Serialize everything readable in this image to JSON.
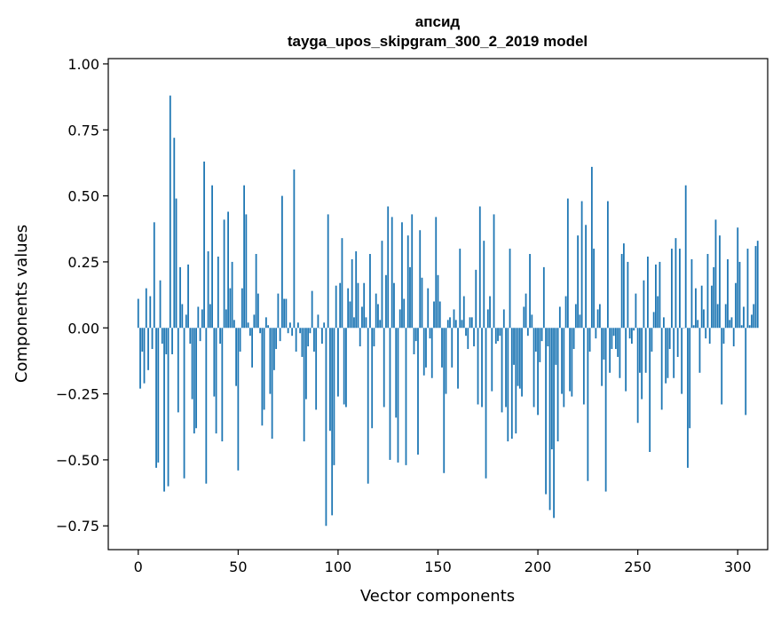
{
  "chart_data": {
    "type": "bar",
    "title": "апсид",
    "subtitle": "tayga_upos_skipgram_300_2_2019 model",
    "xlabel": "Vector components",
    "ylabel": "Components values",
    "xlim": [
      -15,
      315
    ],
    "ylim": [
      -0.84,
      1.02
    ],
    "x_ticks": [
      0,
      50,
      100,
      150,
      200,
      250,
      300
    ],
    "x_tick_labels": [
      "0",
      "50",
      "100",
      "150",
      "200",
      "250",
      "300"
    ],
    "y_ticks": [
      1.0,
      0.75,
      0.5,
      0.25,
      0.0,
      -0.25,
      -0.5,
      -0.75
    ],
    "y_tick_labels": [
      "1.00",
      "0.75",
      "0.50",
      "0.25",
      "0.00",
      "−0.25",
      "−0.50",
      "−0.75"
    ],
    "grid": false,
    "legend": false,
    "bar_color": "#1f77b4",
    "values": [
      0.11,
      -0.23,
      -0.09,
      -0.21,
      0.15,
      -0.16,
      0.12,
      -0.08,
      0.4,
      -0.53,
      -0.51,
      0.18,
      -0.06,
      -0.62,
      -0.1,
      -0.6,
      0.88,
      -0.1,
      0.72,
      0.49,
      -0.32,
      0.23,
      0.09,
      -0.57,
      0.05,
      0.24,
      -0.06,
      -0.27,
      -0.4,
      -0.38,
      0.08,
      -0.05,
      0.07,
      0.63,
      -0.59,
      0.29,
      0.09,
      0.54,
      -0.26,
      -0.4,
      0.27,
      -0.06,
      -0.43,
      0.41,
      0.07,
      0.44,
      0.15,
      0.25,
      0.03,
      -0.22,
      -0.54,
      -0.09,
      0.15,
      0.54,
      0.43,
      0.02,
      -0.03,
      -0.15,
      0.05,
      0.28,
      0.13,
      -0.02,
      -0.37,
      -0.31,
      0.04,
      0.01,
      -0.25,
      -0.42,
      -0.16,
      -0.08,
      0.13,
      -0.05,
      0.5,
      0.11,
      0.11,
      -0.02,
      0.02,
      -0.03,
      0.6,
      -0.09,
      0.02,
      -0.02,
      -0.11,
      -0.43,
      -0.27,
      -0.07,
      -0.02,
      0.14,
      -0.09,
      -0.31,
      0.05,
      0.0,
      -0.06,
      0.02,
      -0.75,
      0.43,
      -0.39,
      -0.71,
      -0.52,
      0.16,
      -0.26,
      0.17,
      0.34,
      -0.29,
      -0.3,
      0.15,
      0.1,
      0.26,
      0.04,
      0.29,
      0.17,
      -0.07,
      0.08,
      0.17,
      0.04,
      -0.59,
      0.28,
      -0.38,
      -0.07,
      0.13,
      0.09,
      0.03,
      0.33,
      -0.3,
      0.2,
      0.46,
      -0.5,
      0.42,
      0.17,
      -0.34,
      -0.51,
      0.07,
      0.4,
      0.11,
      -0.52,
      0.35,
      0.23,
      0.43,
      -0.1,
      -0.05,
      -0.48,
      0.37,
      0.19,
      -0.18,
      -0.15,
      0.15,
      -0.04,
      -0.19,
      0.1,
      0.42,
      0.2,
      0.1,
      -0.15,
      -0.55,
      -0.25,
      0.03,
      0.04,
      -0.15,
      0.07,
      0.03,
      -0.23,
      0.3,
      0.03,
      0.12,
      -0.03,
      -0.08,
      0.04,
      0.04,
      -0.07,
      0.22,
      -0.29,
      0.46,
      -0.3,
      0.33,
      -0.57,
      0.07,
      0.12,
      -0.24,
      0.43,
      -0.06,
      -0.05,
      -0.03,
      -0.32,
      0.07,
      -0.3,
      -0.43,
      0.3,
      -0.42,
      -0.14,
      -0.4,
      -0.22,
      -0.23,
      -0.26,
      0.08,
      0.13,
      -0.03,
      0.28,
      0.05,
      -0.3,
      -0.09,
      -0.33,
      -0.13,
      -0.05,
      0.23,
      -0.63,
      -0.07,
      -0.69,
      -0.46,
      -0.72,
      -0.14,
      -0.43,
      0.08,
      -0.25,
      -0.3,
      0.12,
      0.49,
      -0.24,
      -0.26,
      -0.08,
      0.09,
      0.35,
      0.05,
      0.48,
      -0.29,
      0.39,
      -0.58,
      -0.09,
      0.61,
      0.3,
      -0.04,
      0.07,
      0.09,
      -0.22,
      -0.12,
      -0.62,
      0.48,
      -0.17,
      -0.08,
      -0.03,
      -0.08,
      -0.11,
      -0.19,
      0.28,
      0.32,
      -0.24,
      0.25,
      -0.04,
      -0.06,
      -0.01,
      0.13,
      -0.36,
      -0.17,
      -0.27,
      0.18,
      -0.17,
      0.27,
      -0.47,
      -0.09,
      0.06,
      0.24,
      0.12,
      0.25,
      -0.31,
      0.04,
      -0.21,
      -0.19,
      -0.08,
      0.3,
      -0.19,
      0.34,
      -0.11,
      0.3,
      -0.25,
      0.0,
      0.54,
      -0.53,
      -0.38,
      0.26,
      0.01,
      0.15,
      0.03,
      -0.17,
      0.16,
      0.07,
      -0.04,
      0.28,
      -0.06,
      0.16,
      0.23,
      0.41,
      0.09,
      0.35,
      -0.29,
      -0.06,
      0.09,
      0.26,
      0.03,
      0.04,
      -0.07,
      0.17,
      0.38,
      0.25,
      0.01,
      0.08,
      -0.33,
      0.3,
      0.01,
      0.05,
      0.09,
      0.31,
      0.33
    ]
  }
}
